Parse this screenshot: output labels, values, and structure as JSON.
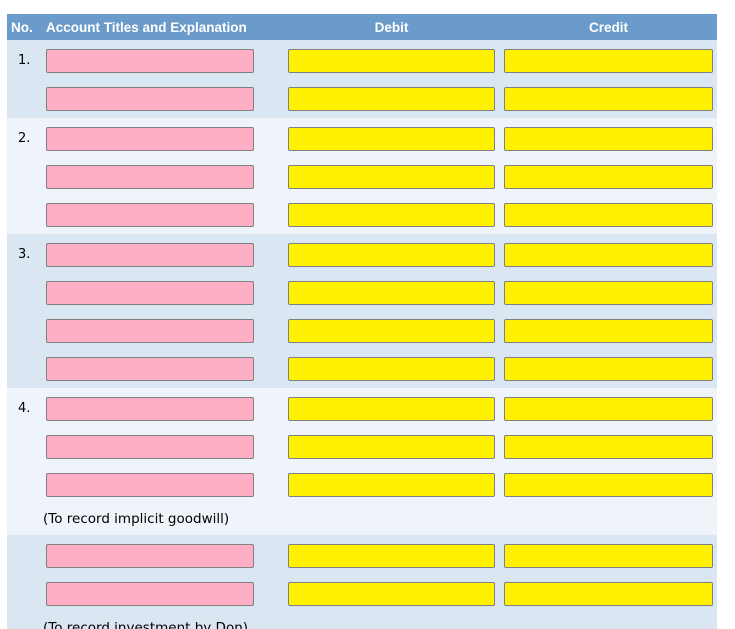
{
  "table": {
    "columns": {
      "no_label": "No.",
      "account_label": "Account Titles and Explanation",
      "debit_label": "Debit",
      "credit_label": "Credit"
    },
    "groups": [
      {
        "number": "1.",
        "rows": 2,
        "note": "",
        "shade": "blue"
      },
      {
        "number": "2.",
        "rows": 3,
        "note": "",
        "shade": "light"
      },
      {
        "number": "3.",
        "rows": 4,
        "note": "",
        "shade": "blue"
      },
      {
        "number": "4.",
        "rows": 3,
        "note": "(To record implicit goodwill)",
        "shade": "light"
      },
      {
        "number": "",
        "rows": 2,
        "note": "(To record investment by Don)",
        "shade": "blue"
      }
    ],
    "inputs": {
      "account_value": "",
      "debit_value": "",
      "credit_value": ""
    }
  },
  "colors": {
    "header_bg": "#6A9BCB",
    "header_text": "#FFFFFF",
    "band_blue": "#DBE6F3",
    "band_light": "#EFF4FB",
    "account_field_bg": "#FFAFC5",
    "amount_field_bg": "#FFF100",
    "field_border": "#808080",
    "note_text": "#000000"
  }
}
